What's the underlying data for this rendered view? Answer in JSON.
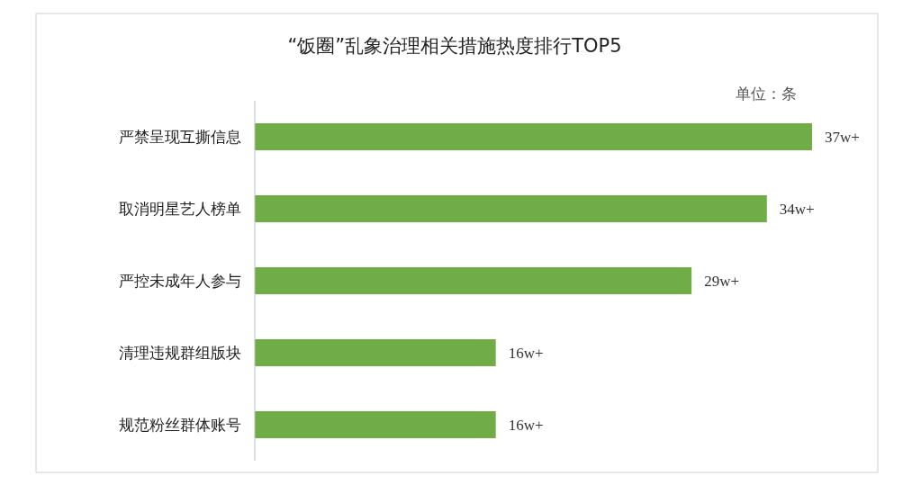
{
  "chart_data": {
    "type": "bar",
    "orientation": "horizontal",
    "title": "“饭圈”乱象治理相关措施热度排行TOP5",
    "annotations": [
      "单位：条"
    ],
    "categories": [
      "严禁呈现互撕信息",
      "取消明星艺人榜单",
      "严控未成年人参与",
      "清理违规群组版块",
      "规范粉丝群体账号"
    ],
    "values": [
      37,
      34,
      29,
      16,
      16
    ],
    "value_labels": [
      "37w+",
      "34w+",
      "29w+",
      "16w+",
      "16w+"
    ],
    "color": "#70ad47"
  }
}
